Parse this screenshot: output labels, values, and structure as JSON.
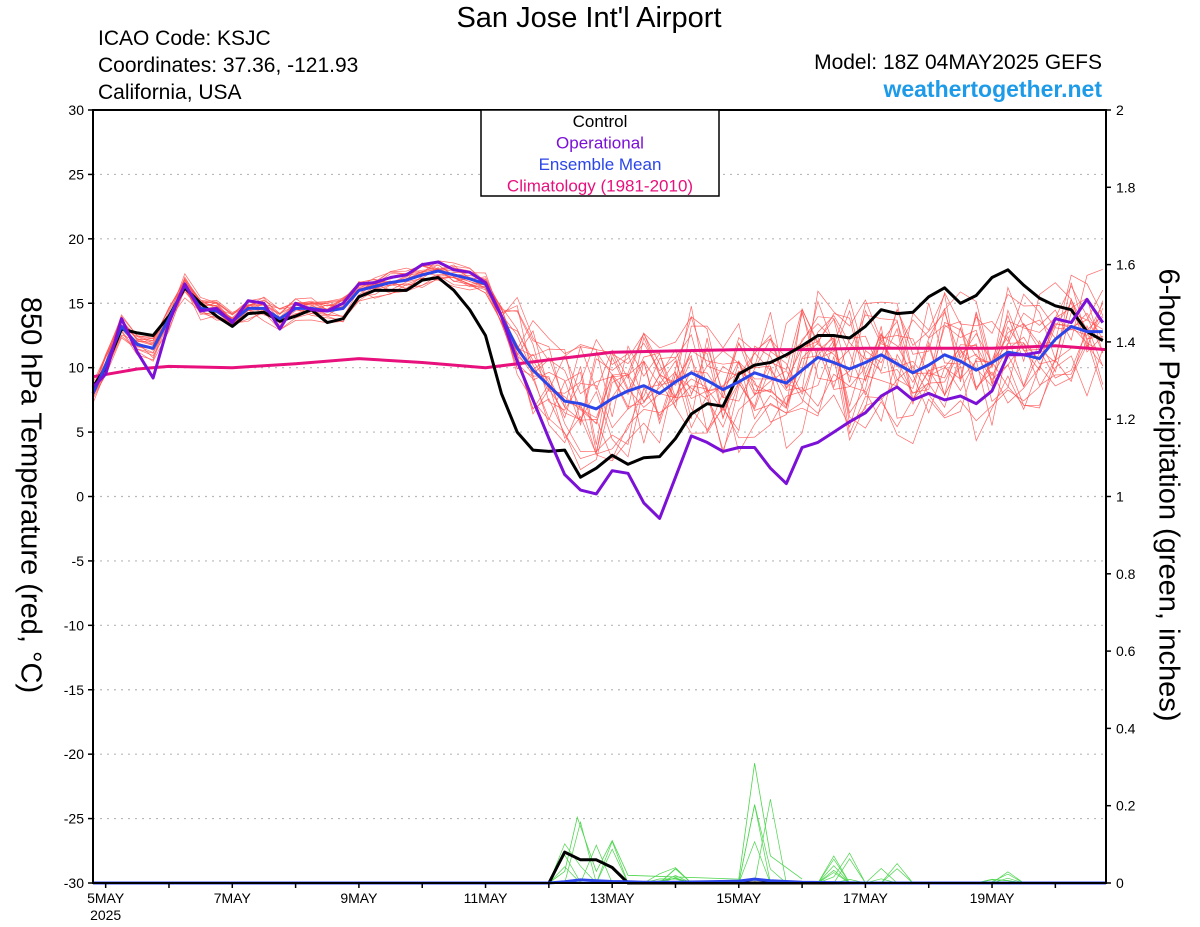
{
  "header": {
    "title": "San Jose Int'l Airport",
    "icao": "ICAO Code: KSJC",
    "coordinates": "Coordinates: 37.36, -121.93",
    "region": "California, USA",
    "model": "Model: 18Z 04MAY2025 GEFS",
    "site": "weathertogether.net"
  },
  "colors": {
    "members": "#ff4d4d",
    "control": "#000000",
    "operational": "#7b10d6",
    "ensemble_mean": "#2b45e8",
    "climatology": "#e8107c",
    "precip_members": "#4dd64d",
    "site": "#1e9be8"
  },
  "chart_data": {
    "type": "line",
    "xlabel": "",
    "ylabel": "850 hPa Temperature (red, °C)",
    "y2label": "6-hour Precipitation (green, inches)",
    "xlim": [
      4.8,
      20.8
    ],
    "ylim": [
      -30,
      30
    ],
    "y2lim": [
      0,
      2
    ],
    "grid": true,
    "x_ticks": [
      {
        "pos": 5,
        "label": "5MAY",
        "sub": "2025"
      },
      {
        "pos": 7,
        "label": "7MAY",
        "sub": ""
      },
      {
        "pos": 9,
        "label": "9MAY",
        "sub": ""
      },
      {
        "pos": 11,
        "label": "11MAY",
        "sub": ""
      },
      {
        "pos": 13,
        "label": "13MAY",
        "sub": ""
      },
      {
        "pos": 15,
        "label": "15MAY",
        "sub": ""
      },
      {
        "pos": 17,
        "label": "17MAY",
        "sub": ""
      },
      {
        "pos": 19,
        "label": "19MAY",
        "sub": ""
      }
    ],
    "y_ticks": [
      30,
      25,
      20,
      15,
      10,
      5,
      0,
      -5,
      -10,
      -15,
      -20,
      -25,
      -30
    ],
    "y2_ticks": [
      "2",
      "1.8",
      "1.6",
      "1.4",
      "1.2",
      "1",
      "0.8",
      "0.6",
      "0.4",
      "0.2",
      "0"
    ],
    "legend": {
      "position": "top-center",
      "entries": [
        {
          "label": "Control",
          "color": "#000000"
        },
        {
          "label": "Operational",
          "color": "#7b10d6"
        },
        {
          "label": "Ensemble Mean",
          "color": "#2b45e8"
        },
        {
          "label": "Climatology (1981-2010)",
          "color": "#e8107c"
        }
      ]
    },
    "series": [
      {
        "name": "Control",
        "axis": "left",
        "x": [
          4.8,
          5.0,
          5.25,
          5.5,
          5.75,
          6.0,
          6.25,
          6.5,
          6.75,
          7.0,
          7.25,
          7.5,
          7.75,
          8.0,
          8.25,
          8.5,
          8.75,
          9.0,
          9.25,
          9.5,
          9.75,
          10.0,
          10.25,
          10.5,
          10.75,
          11.0,
          11.25,
          11.5,
          11.75,
          12.0,
          12.25,
          12.5,
          12.75,
          13.0,
          13.25,
          13.5,
          13.75,
          14.0,
          14.25,
          14.5,
          14.75,
          15.0,
          15.25,
          15.5,
          15.75,
          16.0,
          16.25,
          16.5,
          16.75,
          17.0,
          17.25,
          17.5,
          17.75,
          18.0,
          18.25,
          18.5,
          18.75,
          19.0,
          19.25,
          19.5,
          19.75,
          20.0,
          20.25,
          20.5,
          20.75
        ],
        "y": [
          8.5,
          10.0,
          13.0,
          12.7,
          12.5,
          14.0,
          16.2,
          15.0,
          14.0,
          13.2,
          14.2,
          14.3,
          13.6,
          14.0,
          14.5,
          13.5,
          13.8,
          15.5,
          16.0,
          16.0,
          16.0,
          16.8,
          17.0,
          16.0,
          14.5,
          12.5,
          8.0,
          5.0,
          3.6,
          3.5,
          3.6,
          1.5,
          2.2,
          3.2,
          2.5,
          3.0,
          3.1,
          4.5,
          6.4,
          7.2,
          7.0,
          9.5,
          10.2,
          10.4,
          11.0,
          11.7,
          12.5,
          12.5,
          12.3,
          13.2,
          14.5,
          14.2,
          14.3,
          15.5,
          16.2,
          15.0,
          15.6,
          17.0,
          17.6,
          16.4,
          15.4,
          14.8,
          14.5,
          12.8,
          12.1
        ]
      },
      {
        "name": "Operational",
        "axis": "left",
        "x": [
          4.8,
          5.0,
          5.25,
          5.5,
          5.75,
          6.0,
          6.25,
          6.5,
          6.75,
          7.0,
          7.25,
          7.5,
          7.75,
          8.0,
          8.25,
          8.5,
          8.75,
          9.0,
          9.25,
          9.5,
          9.75,
          10.0,
          10.25,
          10.5,
          10.75,
          11.0,
          11.25,
          11.5,
          11.75,
          12.0,
          12.25,
          12.5,
          12.75,
          13.0,
          13.25,
          13.5,
          13.75,
          14.0,
          14.25,
          14.5,
          14.75,
          15.0,
          15.25,
          15.5,
          15.75,
          16.0,
          16.25,
          16.5,
          16.75,
          17.0,
          17.25,
          17.5,
          17.75,
          18.0,
          18.25,
          18.5,
          18.75,
          19.0,
          19.25,
          19.5,
          19.75,
          20.0,
          20.25,
          20.5,
          20.75
        ],
        "y": [
          8.5,
          9.5,
          13.8,
          11.2,
          9.2,
          13.5,
          16.5,
          14.4,
          14.6,
          13.5,
          15.2,
          15.0,
          13.0,
          15.0,
          14.5,
          14.4,
          15.0,
          16.5,
          16.6,
          17.0,
          17.2,
          18.0,
          18.2,
          17.6,
          17.4,
          16.6,
          14.0,
          10.5,
          7.5,
          4.5,
          1.7,
          0.5,
          0.2,
          2.0,
          1.8,
          -0.5,
          -1.7,
          1.5,
          4.7,
          4.2,
          3.5,
          3.8,
          3.8,
          2.2,
          1.0,
          3.8,
          4.2,
          5.0,
          5.8,
          6.5,
          7.8,
          8.5,
          7.5,
          8.0,
          7.5,
          7.8,
          7.2,
          8.2,
          11.0,
          11.0,
          11.2,
          13.8,
          13.5,
          15.3,
          13.5
        ]
      },
      {
        "name": "Ensemble Mean",
        "axis": "left",
        "x": [
          4.8,
          5.0,
          5.25,
          5.5,
          5.75,
          6.0,
          6.25,
          6.5,
          6.75,
          7.0,
          7.25,
          7.5,
          7.75,
          8.0,
          8.25,
          8.5,
          8.75,
          9.0,
          9.25,
          9.5,
          9.75,
          10.0,
          10.25,
          10.5,
          10.75,
          11.0,
          11.25,
          11.5,
          11.75,
          12.0,
          12.25,
          12.5,
          12.75,
          13.0,
          13.25,
          13.5,
          13.75,
          14.0,
          14.25,
          14.5,
          14.75,
          15.0,
          15.25,
          15.5,
          15.75,
          16.0,
          16.25,
          16.5,
          16.75,
          17.0,
          17.25,
          17.5,
          17.75,
          18.0,
          18.25,
          18.5,
          18.75,
          19.0,
          19.25,
          19.5,
          19.75,
          20.0,
          20.25,
          20.5,
          20.75
        ],
        "y": [
          8.0,
          10.2,
          13.2,
          11.8,
          11.5,
          13.8,
          16.4,
          14.6,
          14.4,
          13.6,
          14.6,
          14.6,
          13.8,
          14.6,
          14.6,
          14.4,
          14.6,
          16.0,
          16.3,
          16.6,
          16.8,
          17.2,
          17.5,
          17.2,
          16.9,
          16.5,
          14.0,
          11.5,
          9.8,
          8.6,
          7.4,
          7.2,
          6.8,
          7.6,
          8.2,
          8.6,
          8.0,
          8.9,
          9.6,
          9.0,
          8.3,
          8.9,
          9.6,
          9.2,
          8.8,
          9.8,
          10.8,
          10.4,
          9.9,
          10.4,
          11.0,
          10.3,
          9.6,
          10.2,
          11.0,
          10.5,
          9.8,
          10.4,
          11.2,
          11.0,
          10.7,
          12.2,
          13.2,
          12.8,
          12.8
        ]
      },
      {
        "name": "Climatology (1981-2010)",
        "axis": "left",
        "x": [
          4.8,
          5.5,
          6.0,
          7.0,
          8.0,
          9.0,
          10.0,
          11.0,
          12.0,
          13.0,
          14.0,
          15.0,
          16.0,
          17.0,
          18.0,
          19.0,
          20.0,
          20.8
        ],
        "y": [
          9.3,
          9.9,
          10.1,
          10.0,
          10.3,
          10.7,
          10.4,
          10.0,
          10.6,
          11.2,
          11.3,
          11.4,
          11.4,
          11.5,
          11.5,
          11.5,
          11.7,
          11.4
        ]
      },
      {
        "name": "Control",
        "axis": "right",
        "x": [
          4.8,
          6.0,
          7.0,
          8.0,
          9.0,
          10.0,
          11.0,
          12.0,
          12.25,
          12.5,
          12.75,
          13.0,
          13.25,
          14.0,
          15.0,
          16.0,
          17.0,
          18.0,
          19.0,
          20.0,
          20.8
        ],
        "y": [
          0,
          0,
          0,
          0,
          0,
          0,
          0,
          0,
          0.08,
          0.06,
          0.06,
          0.04,
          0,
          0,
          0,
          0,
          0,
          0,
          0,
          0,
          0
        ]
      },
      {
        "name": "Ensemble Mean",
        "axis": "right",
        "x": [
          4.8,
          6.0,
          7.0,
          8.0,
          9.0,
          10.0,
          11.0,
          12.0,
          12.25,
          12.5,
          12.75,
          13.0,
          13.25,
          13.5,
          14.0,
          14.5,
          15.0,
          15.25,
          15.5,
          15.75,
          16.0,
          17.0,
          18.0,
          19.0,
          20.0,
          20.8
        ],
        "y": [
          0,
          0,
          0,
          0,
          0,
          0,
          0,
          0,
          0.003,
          0.008,
          0.006,
          0.004,
          0.003,
          0.002,
          0.002,
          0.003,
          0.005,
          0.01,
          0.006,
          0.004,
          0.002,
          0,
          0,
          0,
          0,
          0
        ]
      }
    ]
  }
}
